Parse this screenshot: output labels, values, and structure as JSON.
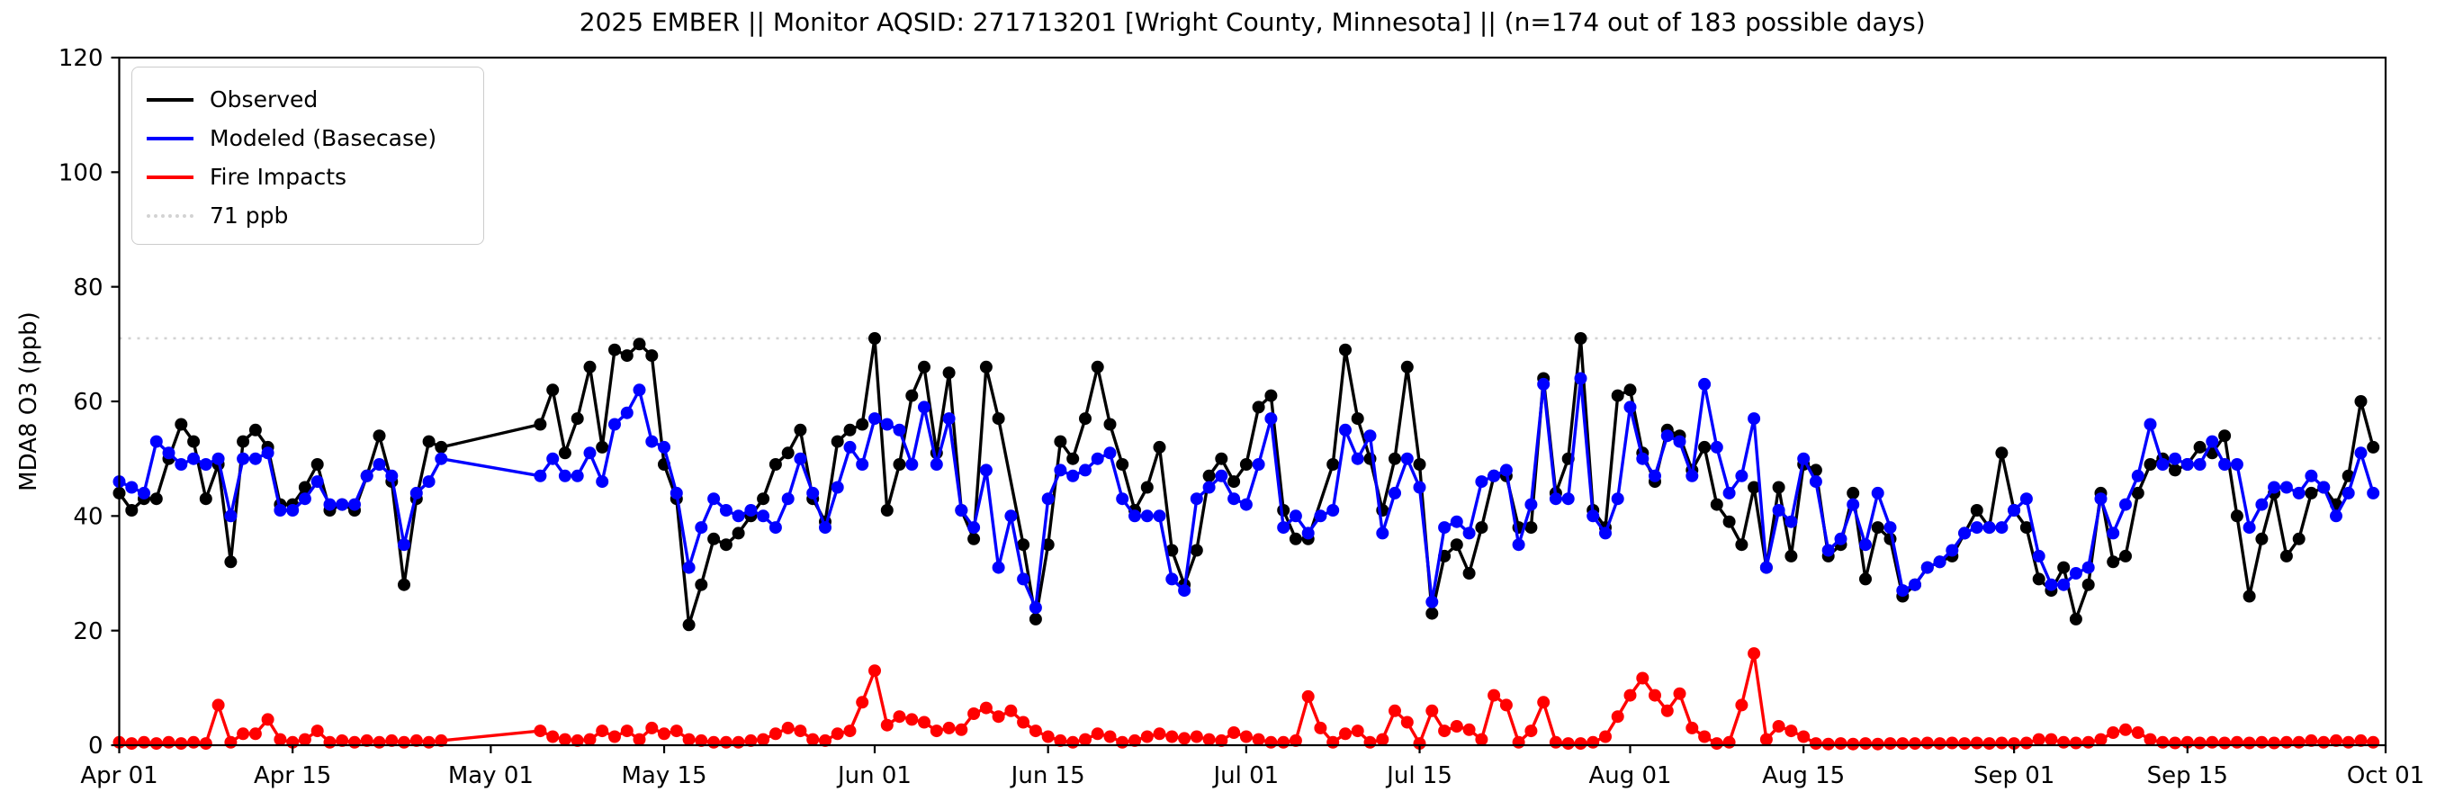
{
  "chart_data": {
    "type": "line",
    "title": "2025 EMBER || Monitor AQSID: 271713201 [Wright County, Minnesota] || (n=174 out of 183 possible days)",
    "xlabel": "",
    "ylabel": "MDA8 O3 (ppb)",
    "ylim": [
      0,
      120
    ],
    "yticks": [
      0,
      20,
      40,
      60,
      80,
      100,
      120
    ],
    "x_range_days": 183,
    "x_start": "Apr 01",
    "x_end": "Oct 01",
    "xticks": [
      {
        "day": 0,
        "label": "Apr 01"
      },
      {
        "day": 14,
        "label": "Apr 15"
      },
      {
        "day": 30,
        "label": "May 01"
      },
      {
        "day": 44,
        "label": "May 15"
      },
      {
        "day": 61,
        "label": "Jun 01"
      },
      {
        "day": 75,
        "label": "Jun 15"
      },
      {
        "day": 91,
        "label": "Jul 01"
      },
      {
        "day": 105,
        "label": "Jul 15"
      },
      {
        "day": 122,
        "label": "Aug 01"
      },
      {
        "day": 136,
        "label": "Aug 15"
      },
      {
        "day": 153,
        "label": "Sep 01"
      },
      {
        "day": 167,
        "label": "Sep 15"
      },
      {
        "day": 183,
        "label": "Oct 01"
      }
    ],
    "grid": false,
    "legend_position": "upper left",
    "reference_line": {
      "label": "71 ppb",
      "value": 71,
      "color": "#d3d3d3",
      "style": "dotted"
    },
    "series": [
      {
        "name": "Observed",
        "color": "#000000",
        "marker": "circle",
        "values": [
          44,
          41,
          43,
          43,
          50,
          56,
          53,
          43,
          49,
          32,
          53,
          55,
          52,
          42,
          42,
          45,
          49,
          41,
          42,
          41,
          47,
          54,
          46,
          28,
          43,
          53,
          52,
          null,
          null,
          null,
          null,
          null,
          null,
          null,
          56,
          62,
          51,
          57,
          66,
          52,
          69,
          68,
          70,
          68,
          49,
          43,
          21,
          28,
          36,
          35,
          37,
          40,
          43,
          49,
          51,
          55,
          43,
          39,
          53,
          55,
          56,
          71,
          41,
          49,
          61,
          66,
          51,
          65,
          41,
          36,
          66,
          57,
          null,
          35,
          22,
          35,
          53,
          50,
          57,
          66,
          56,
          49,
          41,
          45,
          52,
          34,
          28,
          34,
          47,
          50,
          46,
          49,
          59,
          61,
          41,
          36,
          36,
          null,
          49,
          69,
          57,
          50,
          41,
          50,
          66,
          49,
          23,
          33,
          35,
          30,
          38,
          47,
          47,
          38,
          38,
          64,
          44,
          50,
          71,
          41,
          38,
          61,
          62,
          51,
          46,
          55,
          54,
          48,
          52,
          42,
          39,
          35,
          45,
          31,
          45,
          33,
          49,
          48,
          33,
          35,
          44,
          29,
          38,
          36,
          26,
          28,
          31,
          32,
          33,
          37,
          41,
          38,
          51,
          41,
          38,
          29,
          27,
          31,
          22,
          28,
          44,
          32,
          33,
          44,
          49,
          50,
          48,
          49,
          52,
          51,
          54,
          40,
          26,
          36,
          44,
          33,
          36,
          44,
          45,
          42,
          47,
          60,
          52
        ]
      },
      {
        "name": "Modeled (Basecase)",
        "color": "#0000ff",
        "marker": "circle",
        "values": [
          46,
          45,
          44,
          53,
          51,
          49,
          50,
          49,
          50,
          40,
          50,
          50,
          51,
          41,
          41,
          43,
          46,
          42,
          42,
          42,
          47,
          49,
          47,
          35,
          44,
          46,
          50,
          null,
          null,
          null,
          null,
          null,
          null,
          null,
          47,
          50,
          47,
          47,
          51,
          46,
          56,
          58,
          62,
          53,
          52,
          44,
          31,
          38,
          43,
          41,
          40,
          41,
          40,
          38,
          43,
          50,
          44,
          38,
          45,
          52,
          49,
          57,
          56,
          55,
          49,
          59,
          49,
          57,
          41,
          38,
          48,
          31,
          40,
          29,
          24,
          43,
          48,
          47,
          48,
          50,
          51,
          43,
          40,
          40,
          40,
          29,
          27,
          43,
          45,
          47,
          43,
          42,
          49,
          57,
          38,
          40,
          37,
          40,
          41,
          55,
          50,
          54,
          37,
          44,
          50,
          45,
          25,
          38,
          39,
          37,
          46,
          47,
          48,
          35,
          42,
          63,
          43,
          43,
          64,
          40,
          37,
          43,
          59,
          50,
          47,
          54,
          53,
          47,
          63,
          52,
          44,
          47,
          57,
          31,
          41,
          39,
          50,
          46,
          34,
          36,
          42,
          35,
          44,
          38,
          27,
          28,
          31,
          32,
          34,
          37,
          38,
          38,
          38,
          41,
          43,
          33,
          28,
          28,
          30,
          31,
          43,
          37,
          42,
          47,
          56,
          49,
          50,
          49,
          49,
          53,
          49,
          49,
          38,
          42,
          45,
          45,
          44,
          47,
          45,
          40,
          44,
          51,
          44
        ]
      },
      {
        "name": "Fire Impacts",
        "color": "#ff0000",
        "marker": "circle",
        "values": [
          0.5,
          0.3,
          0.5,
          0.3,
          0.5,
          0.3,
          0.5,
          0.3,
          7,
          0.5,
          2,
          2,
          4.5,
          1,
          0.5,
          1,
          2.5,
          0.5,
          0.8,
          0.5,
          0.8,
          0.5,
          0.8,
          0.5,
          0.8,
          0.5,
          0.8,
          null,
          null,
          null,
          null,
          null,
          null,
          null,
          2.5,
          1.5,
          1,
          0.8,
          1,
          2.5,
          1.5,
          2.5,
          1,
          3,
          2,
          2.5,
          1,
          0.8,
          0.5,
          0.5,
          0.5,
          0.8,
          1,
          2,
          3,
          2.5,
          1,
          0.8,
          2,
          2.5,
          7.5,
          13,
          3.5,
          5,
          4.5,
          4,
          2.5,
          3,
          2.7,
          5.5,
          6.5,
          5,
          6,
          4,
          2.5,
          1.5,
          0.8,
          0.5,
          1,
          2,
          1.5,
          0.5,
          0.8,
          1.5,
          2,
          1.5,
          1.2,
          1.5,
          1,
          0.8,
          2.2,
          1.5,
          1,
          0.5,
          0.5,
          0.8,
          8.5,
          3,
          0.5,
          2,
          2.5,
          0.5,
          1,
          6,
          4,
          0.3,
          6,
          2.5,
          3.3,
          2.7,
          1,
          8.7,
          7,
          0.5,
          2.5,
          7.5,
          0.5,
          0.3,
          0.3,
          0.5,
          1.5,
          5,
          8.7,
          11.7,
          8.7,
          6,
          9,
          3,
          1.5,
          0.3,
          0.5,
          7,
          16,
          1,
          3.3,
          2.5,
          1.5,
          0.3,
          0.2,
          0.3,
          0.2,
          0.3,
          0.2,
          0.3,
          0.3,
          0.3,
          0.4,
          0.3,
          0.4,
          0.3,
          0.4,
          0.3,
          0.4,
          0.3,
          0.4,
          1,
          1,
          0.5,
          0.4,
          0.5,
          1,
          2.2,
          2.7,
          2.2,
          1,
          0.5,
          0.4,
          0.5,
          0.4,
          0.5,
          0.4,
          0.5,
          0.4,
          0.5,
          0.4,
          0.5,
          0.5,
          0.8,
          0.5,
          0.8,
          0.5,
          0.8,
          0.5
        ]
      }
    ]
  }
}
